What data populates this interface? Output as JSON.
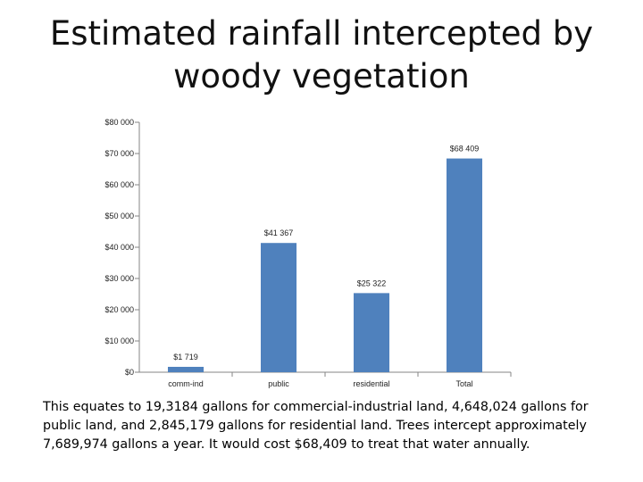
{
  "slide": {
    "title_line1": "Estimated rainfall intercepted by",
    "title_line2": "woody vegetation",
    "caption": "This equates to 19,3184 gallons for commercial-industrial land, 4,648,024 gallons for public land, and 2,845,179 gallons for residential land. Trees intercept approximately 7,689,974 gallons a year. It would cost $68,409 to treat that water annually."
  },
  "chart_data": {
    "type": "bar",
    "categories": [
      "comm-ind",
      "public",
      "residential",
      "Total"
    ],
    "values": [
      1719,
      41367,
      25322,
      68409
    ],
    "data_labels": [
      "$1 719",
      "$41 367",
      "$25 322",
      "$68 409"
    ],
    "y_ticks": [
      0,
      10000,
      20000,
      30000,
      40000,
      50000,
      60000,
      70000,
      80000
    ],
    "y_tick_labels": [
      "$0",
      "$10 000",
      "$20 000",
      "$30 000",
      "$40 000",
      "$50 000",
      "$60 000",
      "$70 000",
      "$80 000"
    ],
    "ylim": [
      0,
      80000
    ],
    "title": "",
    "xlabel": "",
    "ylabel": "",
    "grid": false,
    "legend": "none",
    "bar_color": "#4f81bd"
  }
}
